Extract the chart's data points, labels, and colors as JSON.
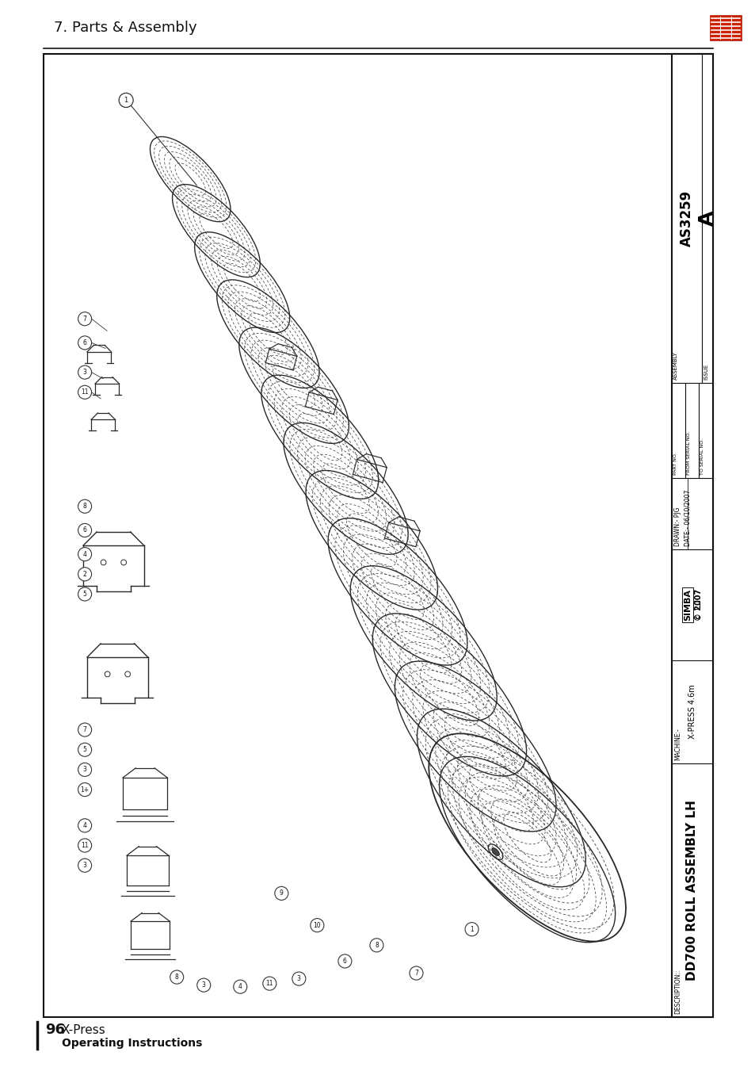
{
  "page_bg": "#ffffff",
  "header_title": "7. Parts & Assembly",
  "header_title_fontsize": 13,
  "footer_page_num": "96",
  "footer_text1": "X-Press",
  "footer_text2": "Operating Instructions",
  "tb_description": "DESCRIPTION::",
  "tb_description_value": "DD700 ROLL ASSEMBLY LH",
  "tb_machine_label": "MACHINE:-",
  "tb_machine_value": "X-PRESS 4.6m",
  "tb_simba_box": "SIMBA",
  "tb_simba_copy": "© 2007",
  "tb_drawn_label": "DRAWN:- PJG",
  "tb_date_label": "DATE:- 06/10/2007",
  "tb_part_no": "PART NO.",
  "tb_from_serial": "FROM SERIAL NO.",
  "tb_to_serial": "TO SERIAL NO.",
  "tb_assembly_label": "ASSEMBLY",
  "tb_assembly_value": "AS3259",
  "tb_issue_label": "ISSUE",
  "tb_issue_value": "A",
  "line_color": "#000000",
  "text_color": "#000000",
  "border_color": "#000000"
}
